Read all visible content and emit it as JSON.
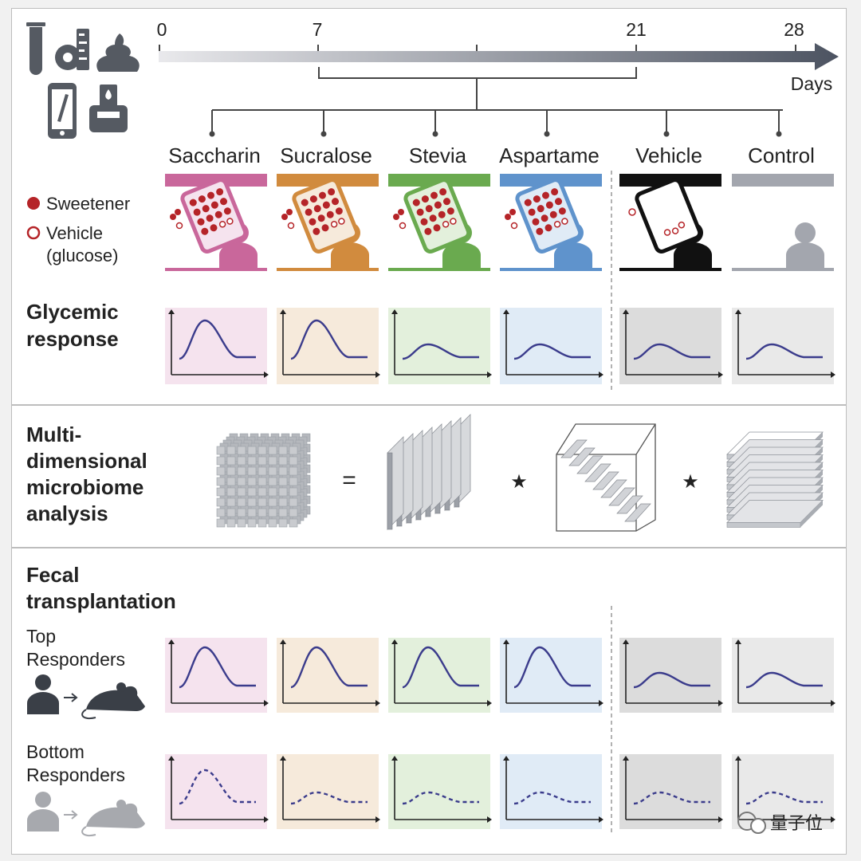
{
  "timeline": {
    "ticks": [
      "0",
      "7",
      "21",
      "28"
    ],
    "unit": "Days"
  },
  "groups": [
    {
      "label": "Saccharin",
      "color": "#c9679b",
      "bg": "#f5e3ee",
      "kind": "sweetener"
    },
    {
      "label": "Sucralose",
      "color": "#d18b3e",
      "bg": "#f6eadb",
      "kind": "sweetener"
    },
    {
      "label": "Stevia",
      "color": "#6aaa4f",
      "bg": "#e3f0dc",
      "kind": "sweetener"
    },
    {
      "label": "Aspartame",
      "color": "#5f93cc",
      "bg": "#e0ebf6",
      "kind": "sweetener"
    },
    {
      "label": "Vehicle",
      "color": "#111111",
      "bg": "#dcdcdc",
      "kind": "vehicle"
    },
    {
      "label": "Control",
      "color": "#a3a6ae",
      "bg": "#e9e9e9",
      "kind": "control"
    }
  ],
  "legend": {
    "sweetener": "Sweetener",
    "vehicle_line1": "Vehicle",
    "vehicle_line2": "(glucose)"
  },
  "sections": {
    "glycemic": [
      "Glycemic",
      "response"
    ],
    "microbiome": [
      "Multi-",
      "dimensional",
      "microbiome",
      "analysis"
    ],
    "fecal": [
      "Fecal",
      "transplantation"
    ],
    "top": [
      "Top",
      "Responders"
    ],
    "bottom": [
      "Bottom",
      "Responders"
    ]
  },
  "operators": {
    "equals": "=",
    "star": "★"
  },
  "watermark": "量子位",
  "colors": {
    "curve": "#3b3c8c",
    "icon": "#555a62",
    "dot": "#b52428"
  }
}
